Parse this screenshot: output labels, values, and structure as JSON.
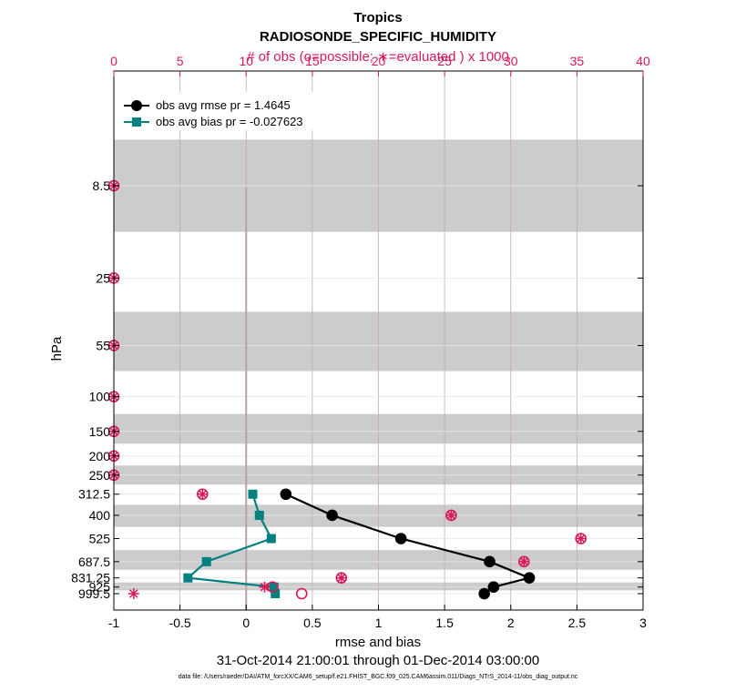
{
  "title": "Tropics",
  "subtitle": "RADIOSONDE_SPECIFIC_HUMIDITY",
  "date_range": "31-Oct-2014 21:00:01 through 01-Dec-2014 03:00:00",
  "footnote": "data file: /Users/raeder/DAI/ATM_forcXX/CAM6_setup/f.e21.FHIST_BGC.f09_025.CAM6assim.011/Diags_NTrS_2014-11/obs_diag_output.nc",
  "colors": {
    "rmse": "#000000",
    "bias": "#00807f",
    "obs": "#d6185c",
    "band": "#cccccc"
  },
  "chart_data": {
    "type": "line",
    "xlabel": "rmse and bias",
    "ylabel": "hPa",
    "top_xlabel": "# of obs (o=possible; ∗=evaluated ) x 1000",
    "xlim": [
      -1,
      3
    ],
    "top_xlim": [
      0,
      40
    ],
    "x_ticks": [
      "-1",
      "-0.5",
      "0",
      "0.5",
      "1",
      "1.5",
      "2",
      "2.5",
      "3"
    ],
    "top_x_ticks": [
      "0",
      "5",
      "10",
      "15",
      "20",
      "25",
      "30",
      "35",
      "40"
    ],
    "grid": "vertical at top-axis ticks",
    "legend_position": "top-left",
    "levels": [
      "8.5",
      "25",
      "55",
      "100",
      "150",
      "200",
      "250",
      "312.5",
      "400",
      "525",
      "687.5",
      "831.25",
      "925",
      "999.5"
    ],
    "series": [
      {
        "name": "obs avg rmse pr = 1.4645",
        "levels": [
          "312.5",
          "400",
          "525",
          "687.5",
          "831.25",
          "925",
          "999.5"
        ],
        "values": [
          0.3,
          0.65,
          1.17,
          1.84,
          2.14,
          1.87,
          1.8
        ]
      },
      {
        "name": "obs avg bias pr = -0.027623",
        "levels": [
          "312.5",
          "400",
          "525",
          "687.5",
          "831.25",
          "925",
          "999.5"
        ],
        "values": [
          0.05,
          0.1,
          0.19,
          -0.3,
          -0.44,
          0.21,
          0.22
        ]
      }
    ],
    "obs_possible": {
      "levels": [
        "8.5",
        "25",
        "55",
        "100",
        "150",
        "200",
        "250",
        "312.5",
        "400",
        "525",
        "687.5",
        "831.25",
        "925",
        "999.5"
      ],
      "values": [
        0,
        0,
        0,
        0,
        0,
        0,
        0,
        6.7,
        25.5,
        35.3,
        31,
        17.2,
        12,
        14.2
      ]
    },
    "obs_evaluated": {
      "levels": [
        "8.5",
        "25",
        "55",
        "100",
        "150",
        "200",
        "250",
        "312.5",
        "400",
        "525",
        "687.5",
        "831.25",
        "925",
        "999.5"
      ],
      "values": [
        0,
        0,
        0,
        0,
        0,
        0,
        0,
        6.7,
        25.5,
        35.3,
        31,
        17.2,
        11.4,
        1.5
      ]
    }
  }
}
